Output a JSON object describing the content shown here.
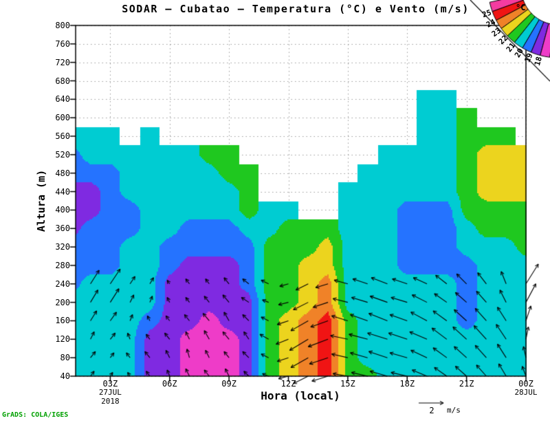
{
  "title": "SODAR — Cubatao — Temperatura (°C) e Vento (m/s)",
  "footer": "GrADS: COLA/IGES",
  "axes": {
    "y_title": "Altura (m)",
    "x_title": "Hora (local)",
    "y_ticks": [
      800,
      760,
      720,
      680,
      640,
      600,
      560,
      520,
      480,
      440,
      400,
      360,
      320,
      280,
      240,
      200,
      160,
      120,
      80,
      40
    ],
    "x_ticks": [
      {
        "hour": 3,
        "label": "03Z"
      },
      {
        "hour": 6,
        "label": "06Z"
      },
      {
        "hour": 9,
        "label": "09Z"
      },
      {
        "hour": 12,
        "label": "12Z"
      },
      {
        "hour": 15,
        "label": "15Z"
      },
      {
        "hour": 18,
        "label": "18Z"
      },
      {
        "hour": 21,
        "label": "21Z"
      },
      {
        "hour": 24,
        "label": "00Z"
      }
    ],
    "x_date_labels": [
      {
        "hour": 3,
        "lines": [
          "27JUL",
          "2018"
        ]
      },
      {
        "hour": 24,
        "lines": [
          "28JUL"
        ]
      }
    ]
  },
  "colorbar": {
    "unit": "°C",
    "tick_labels": [
      "25",
      "24",
      "23",
      "22",
      "21",
      "20",
      "19",
      "18"
    ],
    "wedge_order": [
      "25",
      "24",
      "23",
      "22",
      "21",
      "20",
      "19",
      "18",
      "17"
    ],
    "band_colors": {
      "17": "#ee3cc8",
      "18": "#7f2ae1",
      "19": "#2573ff",
      "20": "#00ccd2",
      "21": "#1fc81f",
      "22": "#ecd41e",
      "23": "#f08228",
      "24": "#f01414",
      "25": "#f53ca0"
    }
  },
  "reference_vector": {
    "value": "2",
    "unit": "m/s",
    "speed_ms": 2
  },
  "chart_data": {
    "type": "filled-contour+vectors",
    "title": "SODAR — Cubatao — Temperatura (°C) e Vento (m/s)",
    "xlabel": "Hora (local)",
    "ylabel": "Altura (m)",
    "contour_interval_c": 1,
    "temp_range_c": [
      17,
      25
    ],
    "x_hours": [
      1,
      2,
      3,
      4,
      5,
      6,
      7,
      8,
      9,
      10,
      11,
      12,
      13,
      14,
      15,
      16,
      17,
      18,
      19,
      20,
      21,
      22,
      23,
      24
    ],
    "heights_m": [
      40,
      80,
      120,
      160,
      200,
      240,
      280,
      320,
      360,
      400,
      440,
      480,
      520,
      560,
      600,
      640,
      680,
      720,
      760,
      800
    ],
    "temperature_c": [
      [
        20,
        20,
        20,
        20,
        20,
        19,
        19,
        19,
        18,
        18,
        18,
        19,
        19,
        20,
        null,
        null,
        null,
        null,
        null,
        null
      ],
      [
        20,
        20,
        20,
        20,
        20,
        20,
        19,
        19,
        19,
        18,
        18,
        19,
        20,
        20,
        null,
        null,
        null,
        null,
        null,
        null
      ],
      [
        20,
        20,
        20,
        20,
        20,
        20,
        19,
        19,
        19,
        19,
        19,
        19,
        20,
        20,
        null,
        null,
        null,
        null,
        null,
        null
      ],
      [
        20,
        20,
        20,
        20,
        20,
        20,
        20,
        20,
        19,
        19,
        20,
        20,
        20,
        null,
        null,
        null,
        null,
        null,
        null,
        null
      ],
      [
        18,
        18,
        18,
        19,
        20,
        20,
        20,
        20,
        20,
        20,
        20,
        20,
        20,
        20,
        null,
        null,
        null,
        null,
        null,
        null
      ],
      [
        18,
        18,
        18,
        18,
        18,
        18,
        19,
        19,
        20,
        20,
        20,
        20,
        20,
        null,
        null,
        null,
        null,
        null,
        null,
        null
      ],
      [
        17,
        17,
        17,
        18,
        18,
        18,
        18,
        19,
        19,
        20,
        20,
        20,
        20,
        null,
        null,
        null,
        null,
        null,
        null,
        null
      ],
      [
        17,
        17,
        17,
        17,
        18,
        18,
        18,
        19,
        19,
        20,
        20,
        20,
        21,
        null,
        null,
        null,
        null,
        null,
        null,
        null
      ],
      [
        17,
        17,
        17,
        18,
        18,
        18,
        18,
        19,
        19,
        20,
        20,
        21,
        21,
        null,
        null,
        null,
        null,
        null,
        null,
        null
      ],
      [
        18,
        18,
        18,
        18,
        18,
        19,
        19,
        19,
        20,
        21,
        21,
        21,
        null,
        null,
        null,
        null,
        null,
        null,
        null,
        null
      ],
      [
        21,
        21,
        21,
        21,
        21,
        21,
        21,
        21,
        20,
        20,
        null,
        null,
        null,
        null,
        null,
        null,
        null,
        null,
        null,
        null
      ],
      [
        22,
        22,
        22,
        22,
        21,
        21,
        21,
        21,
        21,
        20,
        null,
        null,
        null,
        null,
        null,
        null,
        null,
        null,
        null,
        null
      ],
      [
        23,
        23,
        23,
        23,
        22,
        22,
        22,
        21,
        21,
        null,
        null,
        null,
        null,
        null,
        null,
        null,
        null,
        null,
        null,
        null
      ],
      [
        24,
        24,
        24,
        24,
        23,
        23,
        22,
        22,
        21,
        null,
        null,
        null,
        null,
        null,
        null,
        null,
        null,
        null,
        null,
        null
      ],
      [
        21,
        21,
        21,
        21,
        20,
        20,
        20,
        20,
        20,
        20,
        20,
        null,
        null,
        null,
        null,
        null,
        null,
        null,
        null,
        null
      ],
      [
        21,
        20,
        20,
        20,
        20,
        20,
        20,
        20,
        20,
        20,
        20,
        20,
        null,
        null,
        null,
        null,
        null,
        null,
        null,
        null
      ],
      [
        20,
        20,
        20,
        20,
        20,
        20,
        20,
        20,
        20,
        20,
        20,
        20,
        20,
        null,
        null,
        null,
        null,
        null,
        null,
        null
      ],
      [
        20,
        20,
        20,
        20,
        20,
        20,
        19,
        19,
        19,
        19,
        20,
        20,
        20,
        null,
        null,
        null,
        null,
        null,
        null,
        null
      ],
      [
        20,
        20,
        20,
        20,
        20,
        20,
        19,
        19,
        19,
        19,
        20,
        20,
        20,
        20,
        20,
        20,
        null,
        null,
        null,
        null
      ],
      [
        20,
        20,
        20,
        20,
        20,
        20,
        19,
        19,
        19,
        19,
        20,
        20,
        20,
        20,
        20,
        20,
        null,
        null,
        null,
        null
      ],
      [
        20,
        20,
        20,
        19,
        19,
        19,
        19,
        20,
        20,
        21,
        21,
        21,
        21,
        21,
        21,
        null,
        null,
        null,
        null,
        null
      ],
      [
        20,
        20,
        20,
        20,
        20,
        20,
        20,
        20,
        21,
        21,
        22,
        22,
        22,
        21,
        null,
        null,
        null,
        null,
        null,
        null
      ],
      [
        20,
        20,
        20,
        20,
        20,
        20,
        20,
        20,
        21,
        21,
        22,
        22,
        22,
        21,
        null,
        null,
        null,
        null,
        null,
        null
      ],
      [
        20,
        20,
        20,
        20,
        20,
        20,
        20,
        21,
        21,
        21,
        22,
        22,
        22,
        null,
        null,
        null,
        null,
        null,
        null,
        null
      ]
    ],
    "wind": {
      "units": "m/s",
      "hours": [
        2,
        3,
        4,
        5,
        6,
        7,
        8,
        9,
        10,
        11,
        12,
        13,
        14,
        15,
        16,
        17,
        18,
        19,
        20,
        21,
        22,
        23,
        24
      ],
      "heights_m": [
        40,
        80,
        120,
        160,
        200,
        240
      ],
      "u": [
        [
          0.3,
          0.4,
          0.3,
          0.5,
          0.6,
          0.7
        ],
        [
          0.2,
          0.3,
          0.4,
          0.5,
          0.7,
          0.8
        ],
        [
          -0.2,
          -0.3,
          -0.2,
          0.2,
          0.3,
          0.4
        ],
        [
          -0.3,
          -0.4,
          -0.3,
          -0.2,
          0.2,
          0.3
        ],
        [
          -0.2,
          -0.3,
          -0.4,
          -0.3,
          -0.2,
          -0.2
        ],
        [
          -0.3,
          -0.2,
          -0.3,
          -0.4,
          -0.3,
          -0.3
        ],
        [
          -0.4,
          -0.3,
          -0.4,
          -0.5,
          -0.4,
          -0.3
        ],
        [
          -0.3,
          -0.4,
          -0.5,
          -0.4,
          -0.5,
          -0.4
        ],
        [
          -0.4,
          -0.5,
          -0.4,
          -0.5,
          -0.6,
          -0.5
        ],
        [
          -0.5,
          -0.6,
          -0.7,
          -0.6,
          -0.5,
          -0.6
        ],
        [
          -0.8,
          -0.9,
          -1.0,
          -0.9,
          -0.8,
          -0.7
        ],
        [
          -1.2,
          -1.4,
          -1.5,
          -1.4,
          -1.2,
          -1.0
        ],
        [
          -1.3,
          -1.5,
          -1.6,
          -1.4,
          -1.2,
          -1.0
        ],
        [
          -1.2,
          -1.3,
          -1.4,
          -1.3,
          -1.2,
          -1.1
        ],
        [
          -1.3,
          -1.4,
          -1.5,
          -1.4,
          -1.3,
          -1.2
        ],
        [
          -1.4,
          -1.5,
          -1.6,
          -1.5,
          -1.4,
          -1.3
        ],
        [
          -1.3,
          -1.4,
          -1.5,
          -1.4,
          -1.3,
          -1.2
        ],
        [
          -1.2,
          -1.3,
          -1.4,
          -1.3,
          -1.2,
          -1.1
        ],
        [
          -1.0,
          -1.1,
          -1.2,
          -1.1,
          -1.0,
          -0.9
        ],
        [
          -0.9,
          -1.0,
          -1.1,
          -1.0,
          -0.9,
          -0.8
        ],
        [
          -0.8,
          -0.9,
          -1.0,
          -0.9,
          -0.8,
          -0.7
        ],
        [
          -0.6,
          -0.7,
          -0.8,
          -0.7,
          -0.5,
          -0.4
        ],
        [
          -0.3,
          -0.2,
          0.2,
          0.4,
          0.8,
          1.0
        ]
      ],
      "v": [
        [
          0.4,
          0.5,
          0.6,
          0.8,
          1.0,
          1.1
        ],
        [
          0.3,
          0.4,
          0.5,
          0.7,
          1.1,
          1.2
        ],
        [
          0.3,
          0.4,
          0.5,
          0.5,
          0.6,
          0.6
        ],
        [
          0.4,
          0.5,
          0.4,
          0.4,
          0.5,
          0.5
        ],
        [
          0.5,
          0.6,
          0.5,
          0.4,
          0.4,
          0.3
        ],
        [
          0.6,
          0.7,
          0.6,
          0.5,
          0.4,
          0.4
        ],
        [
          0.5,
          0.6,
          0.7,
          0.6,
          0.5,
          0.4
        ],
        [
          0.6,
          0.5,
          0.6,
          0.7,
          0.6,
          0.5
        ],
        [
          0.4,
          0.5,
          0.6,
          0.5,
          0.4,
          0.4
        ],
        [
          0.2,
          0.3,
          0.4,
          0.3,
          0.2,
          0.3
        ],
        [
          -0.2,
          -0.3,
          -0.4,
          -0.3,
          -0.2,
          -0.2
        ],
        [
          -0.6,
          -0.8,
          -0.9,
          -0.8,
          -0.6,
          -0.5
        ],
        [
          -0.4,
          -0.5,
          -0.6,
          -0.5,
          -0.4,
          -0.3
        ],
        [
          0.2,
          0.3,
          0.3,
          0.4,
          0.3,
          0.3
        ],
        [
          0.3,
          0.4,
          0.4,
          0.5,
          0.4,
          0.4
        ],
        [
          0.4,
          0.5,
          0.5,
          0.6,
          0.5,
          0.5
        ],
        [
          0.3,
          0.4,
          0.5,
          0.5,
          0.4,
          0.4
        ],
        [
          0.5,
          0.6,
          0.6,
          0.7,
          0.6,
          0.5
        ],
        [
          0.7,
          0.8,
          0.9,
          0.8,
          0.7,
          0.7
        ],
        [
          0.8,
          0.9,
          1.0,
          0.9,
          0.8,
          0.8
        ],
        [
          0.9,
          1.0,
          1.1,
          1.0,
          0.9,
          0.9
        ],
        [
          1.0,
          1.1,
          1.2,
          1.1,
          1.0,
          1.0
        ],
        [
          0.8,
          0.9,
          1.0,
          1.2,
          1.5,
          1.6
        ]
      ]
    }
  }
}
